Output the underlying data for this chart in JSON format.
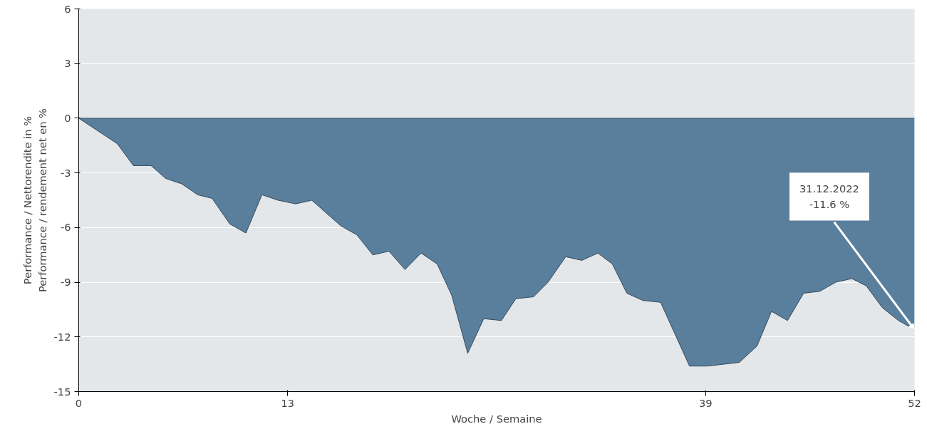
{
  "chart_data": {
    "type": "area",
    "xlabel": "Woche / Semaine",
    "ylabel": "Performance / Nettorendite in %\nPerformance / rendement net en %",
    "x": [
      0,
      2.4,
      3.4,
      4.5,
      5.4,
      6.4,
      7.4,
      8.3,
      9.4,
      10.4,
      11.4,
      12.4,
      13.5,
      14.5,
      15.4,
      16.3,
      17.3,
      18.3,
      19.3,
      20.3,
      21.3,
      22.3,
      23.2,
      24.2,
      25.2,
      26.3,
      27.2,
      28.3,
      29.2,
      30.3,
      31.3,
      32.3,
      33.2,
      34.1,
      35.1,
      36.2,
      38.0,
      39.1,
      41.1,
      42.2,
      43.1,
      44.1,
      45.1,
      46.1,
      47.1,
      48.1,
      49.0,
      50.0,
      51.0,
      52
    ],
    "series": [
      {
        "color": "#5a7f9c",
        "values": [
          0,
          -1.4,
          -2.6,
          -2.6,
          -3.3,
          -3.6,
          -4.2,
          -4.4,
          -5.8,
          -6.3,
          -4.2,
          -4.5,
          -4.7,
          -4.5,
          -5.2,
          -5.9,
          -6.4,
          -7.5,
          -7.3,
          -8.3,
          -7.4,
          -8.0,
          -9.7,
          -12.9,
          -11.0,
          -11.1,
          -9.9,
          -9.8,
          -9.0,
          -7.6,
          -7.8,
          -7.4,
          -8.0,
          -9.6,
          -10.0,
          -10.1,
          -13.6,
          -13.6,
          -13.4,
          -12.5,
          -10.6,
          -11.1,
          -9.6,
          -9.5,
          -9.0,
          -8.8,
          -9.2,
          -10.4,
          -11.1,
          -11.6
        ]
      }
    ],
    "xlim": [
      0,
      52
    ],
    "ylim": [
      -15,
      6
    ],
    "xticks": [
      0,
      13,
      39,
      52
    ],
    "yticks": [
      -15,
      -12,
      -9,
      -6,
      -3,
      0,
      3,
      6
    ],
    "grid": "y",
    "annotations": [
      {
        "text": "31.12.2022\n-11.6 %",
        "x": 52,
        "y": -11.6
      }
    ]
  }
}
